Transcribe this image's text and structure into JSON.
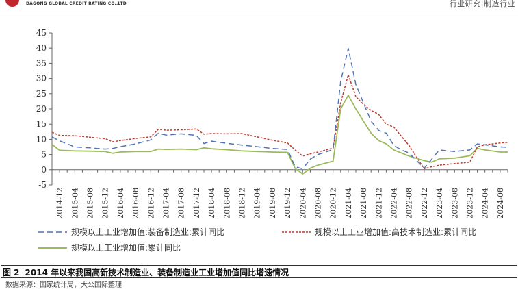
{
  "header": {
    "company_en": "DAGONG GLOBAL CREDIT RATING CO.,LTD",
    "section": "行业研究|制造行业"
  },
  "caption": {
    "number": "图 2",
    "title": "2014 年以来我国高新技术制造业、装备制造业工业增加值同比增速情况"
  },
  "source": "数据来源：国家统计局，大公国际整理",
  "colors": {
    "equipment": "#4f74b3",
    "hightech": "#c0392b",
    "industry": "#9bbb59"
  },
  "chart_data": {
    "type": "line",
    "title": "",
    "xlabel": "",
    "ylabel": "",
    "ylim": [
      -5,
      45
    ],
    "yticks": [
      -5,
      0,
      5,
      10,
      15,
      20,
      25,
      30,
      35,
      40,
      45
    ],
    "grid": false,
    "legend_position": "bottom",
    "x_tick_labels": [
      "2014-12",
      "2015-04",
      "2015-08",
      "2015-12",
      "2016-04",
      "2016-08",
      "2016-12",
      "2017-04",
      "2017-08",
      "2017-12",
      "2018-04",
      "2018-08",
      "2018-12",
      "2019-04",
      "2019-08",
      "2019-12",
      "2020-04",
      "2020-08",
      "2020-12",
      "2021-04",
      "2021-08",
      "2021-12",
      "2022-04",
      "2022-08",
      "2022-12",
      "2023-04",
      "2023-08",
      "2023-12",
      "2024-04",
      "2024-08"
    ],
    "x": [
      "2014-10",
      "2014-12",
      "2015-04",
      "2015-08",
      "2015-12",
      "2016-02",
      "2016-04",
      "2016-08",
      "2016-12",
      "2017-02",
      "2017-04",
      "2017-08",
      "2017-12",
      "2018-02",
      "2018-04",
      "2018-08",
      "2018-12",
      "2019-04",
      "2019-08",
      "2019-12",
      "2020-02",
      "2020-04",
      "2020-06",
      "2020-08",
      "2020-12",
      "2021-02",
      "2021-04",
      "2021-06",
      "2021-08",
      "2021-10",
      "2021-12",
      "2022-02",
      "2022-04",
      "2022-06",
      "2022-08",
      "2022-12",
      "2023-02",
      "2023-04",
      "2023-08",
      "2023-12",
      "2024-02",
      "2024-04",
      "2024-08",
      "2024-10"
    ],
    "series": [
      {
        "name": "规模以上工业增加值:装备制造业:累计同比",
        "style": "dashed",
        "values": [
          10.8,
          9.5,
          7.5,
          7.2,
          6.8,
          7.0,
          7.6,
          8.5,
          9.8,
          12.0,
          11.4,
          11.8,
          11.3,
          8.6,
          9.4,
          8.7,
          8.1,
          7.6,
          7.0,
          6.7,
          1.0,
          0.3,
          3.5,
          5.0,
          6.6,
          29.0,
          39.9,
          28.0,
          22.0,
          16.0,
          12.9,
          12.0,
          8.0,
          6.5,
          5.5,
          0.5,
          3.5,
          6.5,
          6.0,
          6.5,
          8.5,
          8.2,
          7.5,
          7.4
        ]
      },
      {
        "name": "规模以上工业增加值:高技术制造业:累计同比",
        "style": "dotted",
        "values": [
          12.3,
          11.3,
          11.2,
          10.7,
          10.2,
          9.2,
          9.6,
          10.3,
          10.8,
          13.3,
          13.0,
          13.1,
          13.4,
          11.7,
          11.9,
          11.8,
          11.9,
          10.8,
          9.7,
          8.8,
          6.5,
          4.5,
          5.2,
          5.8,
          7.1,
          22.0,
          31.2,
          24.0,
          21.5,
          19.5,
          18.2,
          15.0,
          14.0,
          11.0,
          8.0,
          0.3,
          1.0,
          1.5,
          2.0,
          2.5,
          7.5,
          8.2,
          8.8,
          9.0
        ]
      },
      {
        "name": "规模以上工业增加值:累计同比",
        "style": "solid",
        "values": [
          8.3,
          6.4,
          6.2,
          6.1,
          6.0,
          5.4,
          5.8,
          6.0,
          6.0,
          6.8,
          6.7,
          6.8,
          6.6,
          7.2,
          6.9,
          6.6,
          6.2,
          6.0,
          5.8,
          5.7,
          0.5,
          -1.4,
          0.5,
          1.5,
          2.8,
          20.0,
          24.5,
          20.0,
          16.0,
          12.0,
          9.6,
          8.5,
          6.5,
          5.5,
          4.5,
          3.0,
          2.5,
          3.6,
          3.8,
          4.6,
          7.0,
          6.5,
          5.8,
          5.8
        ]
      }
    ]
  }
}
